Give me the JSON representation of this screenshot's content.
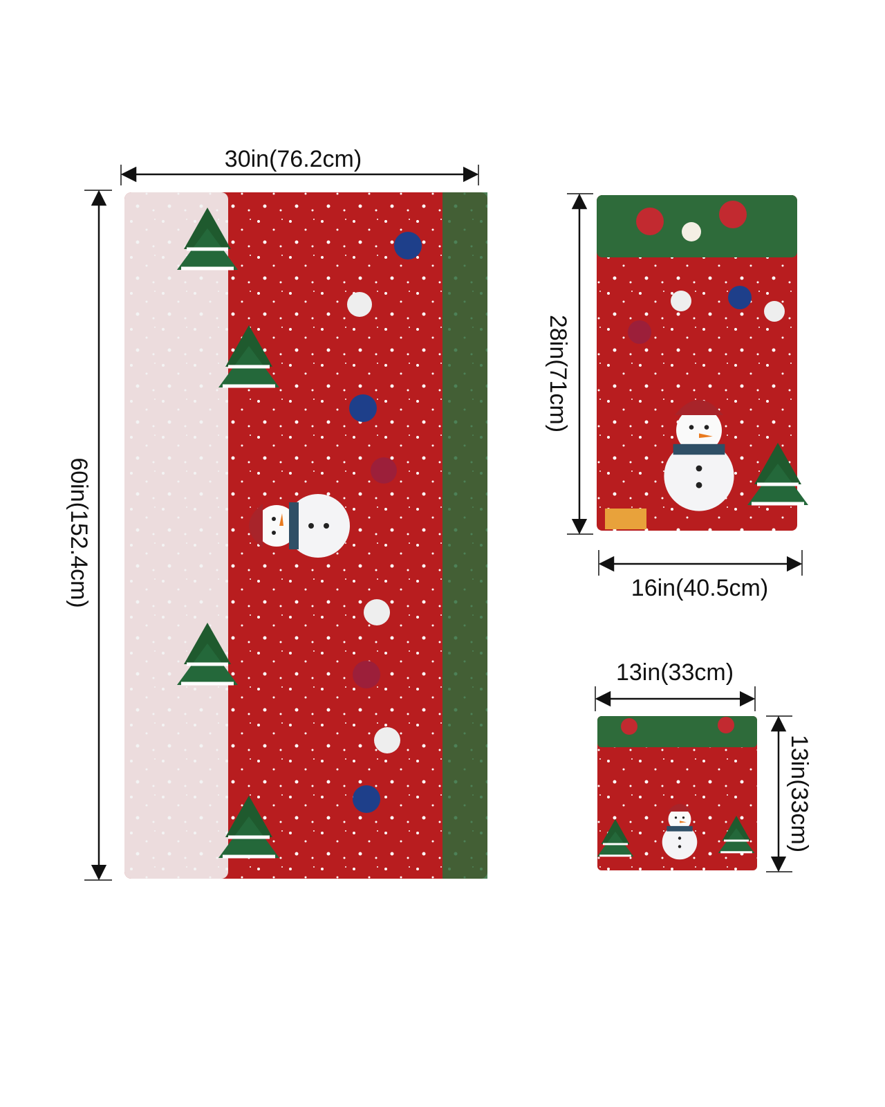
{
  "towels": [
    {
      "width": "30in(76.2cm)",
      "height": "60in(152.4cm)"
    },
    {
      "width": "16in(40.5cm)",
      "height": "28in(71cm)"
    },
    {
      "width": "13in(33cm)",
      "height": "13in(33cm)"
    }
  ]
}
